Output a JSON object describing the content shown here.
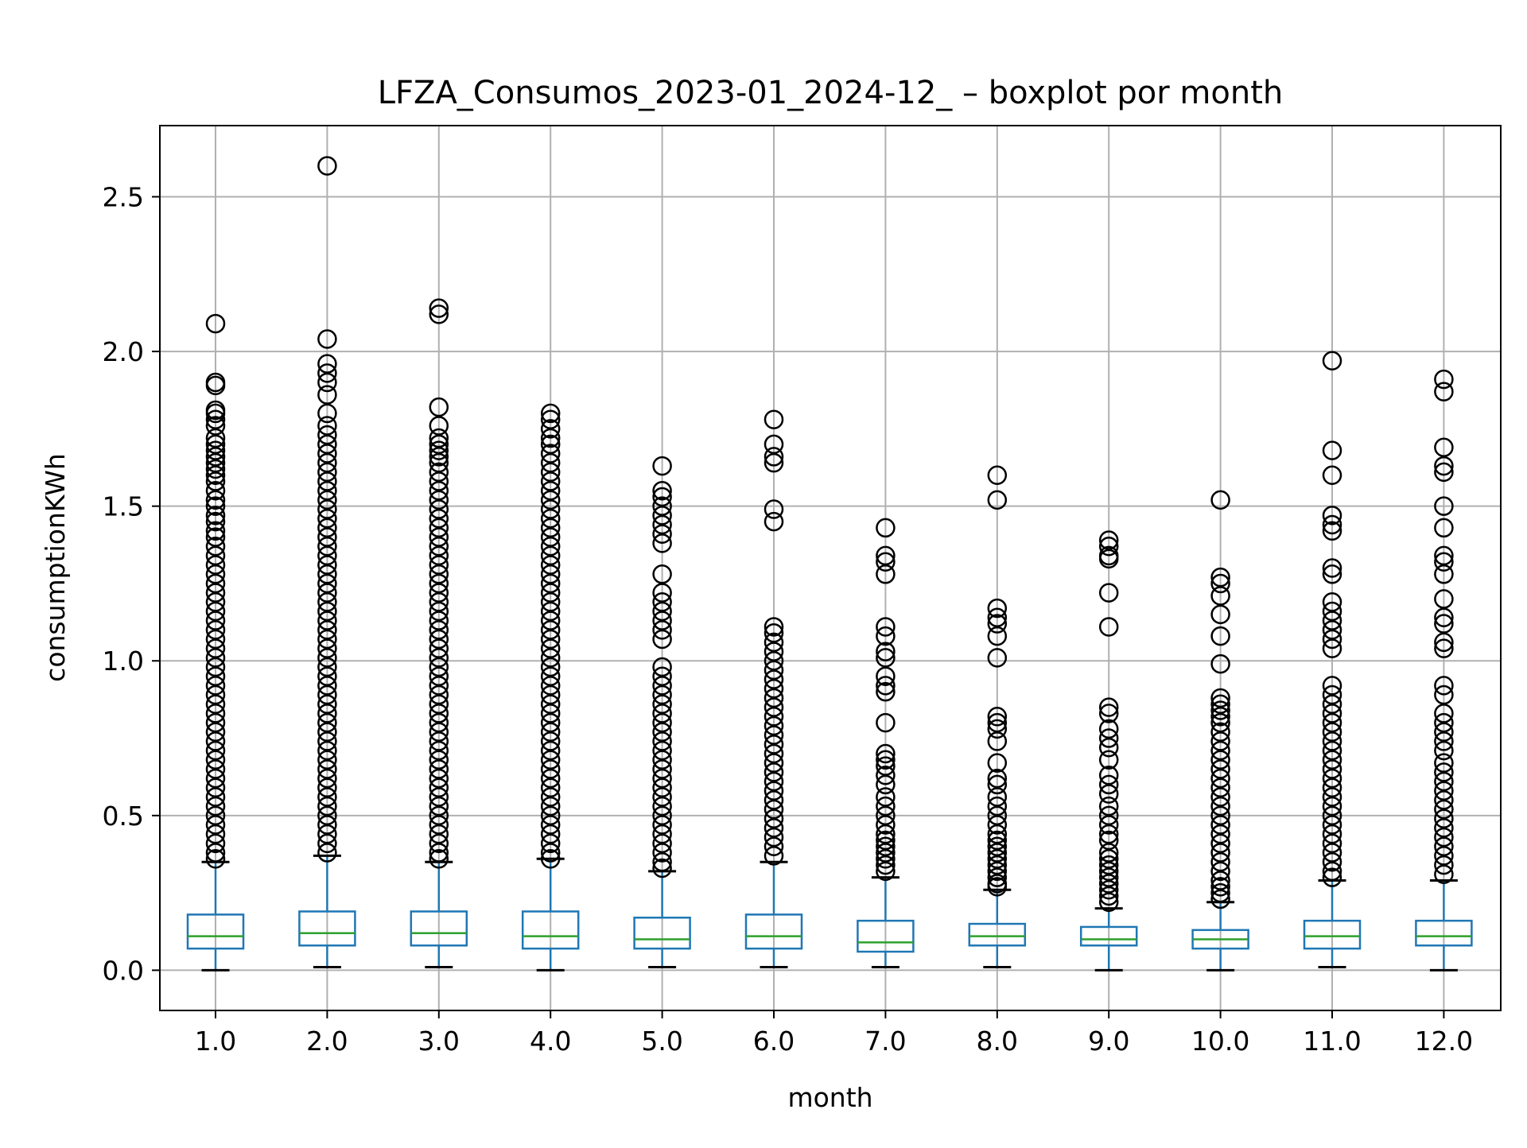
{
  "chart_data": {
    "type": "boxplot",
    "title": "LFZA_Consumos_2023-01_2024-12_ – boxplot por month",
    "xlabel": "month",
    "ylabel": "consumptionKWh",
    "categories": [
      "1.0",
      "2.0",
      "3.0",
      "4.0",
      "5.0",
      "6.0",
      "7.0",
      "8.0",
      "9.0",
      "10.0",
      "11.0",
      "12.0"
    ],
    "ylim": [
      -0.13,
      2.73
    ],
    "yticks": [
      0.0,
      0.5,
      1.0,
      1.5,
      2.0,
      2.5
    ],
    "ytick_labels": [
      "0.0",
      "0.5",
      "1.0",
      "1.5",
      "2.0",
      "2.5"
    ],
    "grid": true,
    "colors": {
      "box": "#1f77b4",
      "median": "#2ca02c",
      "whisker": "#1f77b4",
      "cap": "#000000",
      "flier": "#000000",
      "grid": "#b0b0b0"
    },
    "boxes": [
      {
        "month": "1.0",
        "whisker_low": 0.0,
        "q1": 0.07,
        "median": 0.11,
        "q3": 0.18,
        "whisker_high": 0.35,
        "fliers": [
          2.09,
          1.9,
          1.89,
          1.81,
          1.8,
          1.78,
          1.76,
          1.72,
          1.7,
          1.68,
          1.66,
          1.64,
          1.62,
          1.6,
          1.58,
          1.55,
          1.52,
          1.5,
          1.47,
          1.45,
          1.42,
          1.4,
          1.37,
          1.34,
          1.31,
          1.28,
          1.25,
          1.22,
          1.19,
          1.16,
          1.13,
          1.1,
          1.07,
          1.04,
          1.01,
          0.98,
          0.95,
          0.92,
          0.89,
          0.86,
          0.83,
          0.8,
          0.77,
          0.74,
          0.71,
          0.68,
          0.65,
          0.62,
          0.59,
          0.56,
          0.53,
          0.5,
          0.47,
          0.44,
          0.41,
          0.38,
          0.36
        ]
      },
      {
        "month": "2.0",
        "whisker_low": 0.01,
        "q1": 0.08,
        "median": 0.12,
        "q3": 0.19,
        "whisker_high": 0.37,
        "fliers": [
          2.6,
          2.04,
          1.96,
          1.93,
          1.9,
          1.86,
          1.8,
          1.76,
          1.73,
          1.7,
          1.67,
          1.64,
          1.61,
          1.58,
          1.55,
          1.52,
          1.49,
          1.46,
          1.43,
          1.4,
          1.37,
          1.34,
          1.31,
          1.28,
          1.25,
          1.22,
          1.19,
          1.16,
          1.13,
          1.1,
          1.07,
          1.04,
          1.01,
          0.98,
          0.95,
          0.92,
          0.89,
          0.86,
          0.83,
          0.8,
          0.77,
          0.74,
          0.71,
          0.68,
          0.65,
          0.62,
          0.59,
          0.56,
          0.53,
          0.5,
          0.47,
          0.44,
          0.41,
          0.38
        ]
      },
      {
        "month": "3.0",
        "whisker_low": 0.01,
        "q1": 0.08,
        "median": 0.12,
        "q3": 0.19,
        "whisker_high": 0.35,
        "fliers": [
          2.14,
          2.12,
          1.82,
          1.76,
          1.72,
          1.7,
          1.68,
          1.66,
          1.64,
          1.61,
          1.58,
          1.55,
          1.52,
          1.49,
          1.46,
          1.43,
          1.4,
          1.37,
          1.34,
          1.31,
          1.28,
          1.25,
          1.22,
          1.19,
          1.16,
          1.13,
          1.1,
          1.07,
          1.04,
          1.01,
          0.98,
          0.95,
          0.92,
          0.89,
          0.86,
          0.83,
          0.8,
          0.77,
          0.74,
          0.71,
          0.68,
          0.65,
          0.62,
          0.59,
          0.56,
          0.53,
          0.5,
          0.47,
          0.44,
          0.41,
          0.38,
          0.36
        ]
      },
      {
        "month": "4.0",
        "whisker_low": 0.0,
        "q1": 0.07,
        "median": 0.11,
        "q3": 0.19,
        "whisker_high": 0.36,
        "fliers": [
          1.8,
          1.78,
          1.75,
          1.72,
          1.7,
          1.67,
          1.64,
          1.61,
          1.58,
          1.55,
          1.52,
          1.49,
          1.46,
          1.43,
          1.4,
          1.37,
          1.34,
          1.31,
          1.28,
          1.25,
          1.22,
          1.19,
          1.16,
          1.13,
          1.1,
          1.07,
          1.04,
          1.01,
          0.98,
          0.95,
          0.92,
          0.89,
          0.86,
          0.83,
          0.8,
          0.77,
          0.74,
          0.71,
          0.68,
          0.65,
          0.62,
          0.59,
          0.56,
          0.53,
          0.5,
          0.47,
          0.44,
          0.41,
          0.38,
          0.36
        ]
      },
      {
        "month": "5.0",
        "whisker_low": 0.01,
        "q1": 0.07,
        "median": 0.1,
        "q3": 0.17,
        "whisker_high": 0.32,
        "fliers": [
          1.63,
          1.55,
          1.53,
          1.5,
          1.47,
          1.44,
          1.41,
          1.38,
          1.28,
          1.22,
          1.19,
          1.16,
          1.13,
          1.1,
          1.07,
          0.98,
          0.95,
          0.92,
          0.89,
          0.86,
          0.83,
          0.8,
          0.77,
          0.74,
          0.71,
          0.68,
          0.65,
          0.62,
          0.59,
          0.56,
          0.53,
          0.5,
          0.47,
          0.44,
          0.41,
          0.38,
          0.35,
          0.33
        ]
      },
      {
        "month": "6.0",
        "whisker_low": 0.01,
        "q1": 0.07,
        "median": 0.11,
        "q3": 0.18,
        "whisker_high": 0.35,
        "fliers": [
          1.78,
          1.7,
          1.66,
          1.64,
          1.49,
          1.45,
          1.11,
          1.09,
          1.06,
          1.03,
          1.0,
          0.97,
          0.94,
          0.91,
          0.88,
          0.85,
          0.82,
          0.79,
          0.76,
          0.73,
          0.7,
          0.67,
          0.64,
          0.61,
          0.58,
          0.55,
          0.52,
          0.49,
          0.46,
          0.43,
          0.4,
          0.37
        ]
      },
      {
        "month": "7.0",
        "whisker_low": 0.01,
        "q1": 0.06,
        "median": 0.09,
        "q3": 0.16,
        "whisker_high": 0.3,
        "fliers": [
          1.43,
          1.34,
          1.32,
          1.28,
          1.11,
          1.08,
          1.03,
          1.01,
          0.95,
          0.92,
          0.9,
          0.8,
          0.7,
          0.68,
          0.66,
          0.63,
          0.6,
          0.56,
          0.53,
          0.5,
          0.47,
          0.44,
          0.42,
          0.4,
          0.38,
          0.36,
          0.34,
          0.32
        ]
      },
      {
        "month": "8.0",
        "whisker_low": 0.01,
        "q1": 0.08,
        "median": 0.11,
        "q3": 0.15,
        "whisker_high": 0.26,
        "fliers": [
          1.6,
          1.52,
          1.17,
          1.14,
          1.12,
          1.08,
          1.01,
          0.82,
          0.8,
          0.78,
          0.74,
          0.67,
          0.62,
          0.6,
          0.56,
          0.53,
          0.5,
          0.47,
          0.44,
          0.42,
          0.4,
          0.38,
          0.36,
          0.34,
          0.32,
          0.3,
          0.28,
          0.27
        ]
      },
      {
        "month": "9.0",
        "whisker_low": 0.0,
        "q1": 0.08,
        "median": 0.1,
        "q3": 0.14,
        "whisker_high": 0.2,
        "fliers": [
          1.39,
          1.37,
          1.34,
          1.33,
          1.22,
          1.11,
          0.85,
          0.83,
          0.78,
          0.75,
          0.72,
          0.68,
          0.63,
          0.6,
          0.57,
          0.53,
          0.5,
          0.47,
          0.44,
          0.42,
          0.38,
          0.36,
          0.34,
          0.32,
          0.3,
          0.28,
          0.26,
          0.24,
          0.22
        ]
      },
      {
        "month": "10.0",
        "whisker_low": 0.0,
        "q1": 0.07,
        "median": 0.1,
        "q3": 0.13,
        "whisker_high": 0.22,
        "fliers": [
          1.52,
          1.27,
          1.25,
          1.21,
          1.15,
          1.08,
          0.99,
          0.88,
          0.86,
          0.84,
          0.82,
          0.8,
          0.77,
          0.74,
          0.71,
          0.68,
          0.65,
          0.62,
          0.59,
          0.56,
          0.53,
          0.5,
          0.47,
          0.44,
          0.41,
          0.38,
          0.35,
          0.32,
          0.29,
          0.27,
          0.25,
          0.23
        ]
      },
      {
        "month": "11.0",
        "whisker_low": 0.01,
        "q1": 0.07,
        "median": 0.11,
        "q3": 0.16,
        "whisker_high": 0.29,
        "fliers": [
          1.97,
          1.68,
          1.6,
          1.47,
          1.44,
          1.42,
          1.3,
          1.28,
          1.19,
          1.16,
          1.13,
          1.1,
          1.07,
          1.04,
          0.92,
          0.89,
          0.86,
          0.83,
          0.8,
          0.77,
          0.74,
          0.71,
          0.68,
          0.65,
          0.62,
          0.59,
          0.56,
          0.53,
          0.5,
          0.47,
          0.44,
          0.41,
          0.38,
          0.35,
          0.32,
          0.3
        ]
      },
      {
        "month": "12.0",
        "whisker_low": 0.0,
        "q1": 0.08,
        "median": 0.11,
        "q3": 0.16,
        "whisker_high": 0.29,
        "fliers": [
          1.91,
          1.87,
          1.69,
          1.63,
          1.61,
          1.5,
          1.43,
          1.34,
          1.32,
          1.28,
          1.2,
          1.14,
          1.12,
          1.06,
          1.04,
          0.92,
          0.89,
          0.83,
          0.8,
          0.77,
          0.74,
          0.71,
          0.67,
          0.64,
          0.61,
          0.58,
          0.55,
          0.52,
          0.49,
          0.46,
          0.43,
          0.4,
          0.37,
          0.34,
          0.31
        ]
      }
    ]
  }
}
